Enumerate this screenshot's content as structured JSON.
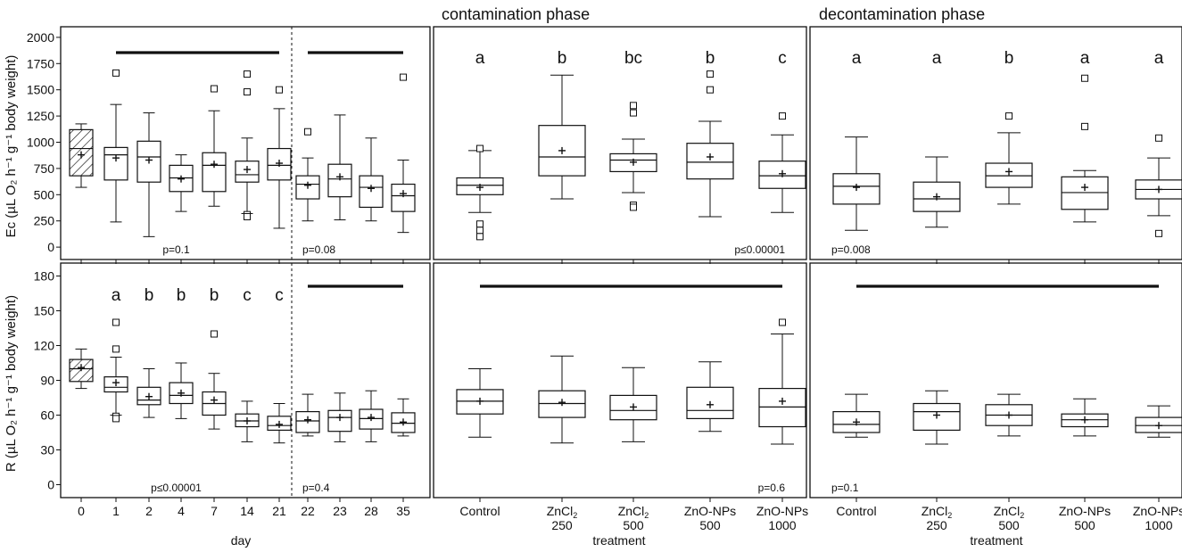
{
  "phase_titles": [
    "contamination phase",
    "decontamination phase"
  ],
  "chart_data": [
    {
      "type": "box",
      "panel": "top-left",
      "ylabel": "Ec (µL O₂ h⁻¹ g⁻¹ body weight)",
      "ylim": [
        0,
        2000
      ],
      "yticks": [
        0,
        250,
        500,
        750,
        1000,
        1250,
        1500,
        1750,
        2000
      ],
      "categories": [
        "0",
        "1",
        "2",
        "4",
        "7",
        "14",
        "21",
        "22",
        "23",
        "28",
        "35"
      ],
      "xlabel": "",
      "p_values": [
        {
          "label": "p=0.1",
          "position": "bottom-left"
        },
        {
          "label": "p=0.08",
          "position": "bottom-right"
        }
      ],
      "significance_bars": [
        [
          1,
          6
        ],
        [
          7,
          10
        ]
      ],
      "letters": [],
      "boxes": [
        {
          "cat": "0",
          "q1": 680,
          "median": 940,
          "q3": 1120,
          "wlo": 570,
          "whi": 1175,
          "mean": 880,
          "outliers": [],
          "hatched": true
        },
        {
          "cat": "1",
          "q1": 640,
          "median": 880,
          "q3": 950,
          "wlo": 240,
          "whi": 1360,
          "mean": 850,
          "outliers": [
            1660
          ]
        },
        {
          "cat": "2",
          "q1": 620,
          "median": 860,
          "q3": 1010,
          "wlo": 100,
          "whi": 1280,
          "mean": 830,
          "outliers": []
        },
        {
          "cat": "4",
          "q1": 530,
          "median": 660,
          "q3": 780,
          "wlo": 340,
          "whi": 880,
          "mean": 650,
          "outliers": []
        },
        {
          "cat": "7",
          "q1": 530,
          "median": 780,
          "q3": 900,
          "wlo": 390,
          "whi": 1300,
          "mean": 790,
          "outliers": [
            1510
          ]
        },
        {
          "cat": "14",
          "q1": 620,
          "median": 690,
          "q3": 820,
          "wlo": 320,
          "whi": 1040,
          "mean": 740,
          "outliers": [
            1650,
            1480,
            310,
            290
          ]
        },
        {
          "cat": "21",
          "q1": 640,
          "median": 780,
          "q3": 940,
          "wlo": 180,
          "whi": 1320,
          "mean": 800,
          "outliers": [
            1500
          ]
        },
        {
          "cat": "22",
          "q1": 460,
          "median": 600,
          "q3": 680,
          "wlo": 250,
          "whi": 850,
          "mean": 590,
          "outliers": [
            1100
          ]
        },
        {
          "cat": "23",
          "q1": 480,
          "median": 650,
          "q3": 790,
          "wlo": 260,
          "whi": 1260,
          "mean": 670,
          "outliers": []
        },
        {
          "cat": "28",
          "q1": 380,
          "median": 570,
          "q3": 680,
          "wlo": 250,
          "whi": 1040,
          "mean": 560,
          "outliers": []
        },
        {
          "cat": "35",
          "q1": 340,
          "median": 490,
          "q3": 600,
          "wlo": 140,
          "whi": 830,
          "mean": 510,
          "outliers": [
            1620
          ]
        }
      ]
    },
    {
      "type": "box",
      "panel": "top-middle",
      "title": "contamination phase",
      "ylim": [
        0,
        2000
      ],
      "categories": [
        [
          "Control"
        ],
        [
          "ZnCl",
          "2",
          "250"
        ],
        [
          "ZnCl",
          "2",
          "500"
        ],
        [
          "ZnO-NPs",
          "",
          "500"
        ],
        [
          "ZnO-NPs",
          "",
          "1000"
        ]
      ],
      "letters": [
        "a",
        "b",
        "bc",
        "b",
        "c"
      ],
      "p_values": [
        {
          "label": "p≤0.00001",
          "position": "bottom-right"
        }
      ],
      "significance_bars": [],
      "boxes": [
        {
          "q1": 500,
          "median": 590,
          "q3": 660,
          "wlo": 330,
          "whi": 920,
          "mean": 570,
          "outliers": [
            940,
            220,
            160,
            100
          ]
        },
        {
          "q1": 680,
          "median": 860,
          "q3": 1160,
          "wlo": 460,
          "whi": 1640,
          "mean": 920,
          "outliers": []
        },
        {
          "q1": 720,
          "median": 830,
          "q3": 890,
          "wlo": 520,
          "whi": 1030,
          "mean": 810,
          "outliers": [
            1350,
            1280,
            400,
            380
          ]
        },
        {
          "q1": 650,
          "median": 810,
          "q3": 990,
          "wlo": 290,
          "whi": 1200,
          "mean": 860,
          "outliers": [
            1650,
            1500
          ]
        },
        {
          "q1": 560,
          "median": 680,
          "q3": 820,
          "wlo": 330,
          "whi": 1070,
          "mean": 700,
          "outliers": [
            1250
          ]
        }
      ]
    },
    {
      "type": "box",
      "panel": "top-right",
      "title": "decontamination phase",
      "ylim": [
        0,
        2000
      ],
      "categories": [
        [
          "Control"
        ],
        [
          "ZnCl",
          "2",
          "250"
        ],
        [
          "ZnCl",
          "2",
          "500"
        ],
        [
          "ZnO-NPs",
          "",
          "500"
        ],
        [
          "ZnO-NPs",
          "",
          "1000"
        ]
      ],
      "letters": [
        "a",
        "a",
        "b",
        "a",
        "a"
      ],
      "p_values": [
        {
          "label": "p=0.008",
          "position": "bottom-left"
        }
      ],
      "significance_bars": [],
      "boxes": [
        {
          "q1": 410,
          "median": 580,
          "q3": 700,
          "wlo": 160,
          "whi": 1050,
          "mean": 570,
          "outliers": []
        },
        {
          "q1": 340,
          "median": 460,
          "q3": 620,
          "wlo": 190,
          "whi": 860,
          "mean": 480,
          "outliers": []
        },
        {
          "q1": 570,
          "median": 680,
          "q3": 800,
          "wlo": 410,
          "whi": 1090,
          "mean": 720,
          "outliers": [
            1250
          ]
        },
        {
          "q1": 360,
          "median": 520,
          "q3": 670,
          "wlo": 240,
          "whi": 730,
          "mean": 570,
          "outliers": [
            1610,
            1150
          ]
        },
        {
          "q1": 460,
          "median": 550,
          "q3": 640,
          "wlo": 300,
          "whi": 850,
          "mean": 550,
          "outliers": [
            1040,
            130
          ]
        }
      ]
    },
    {
      "type": "box",
      "panel": "bottom-left",
      "ylabel": "R (µL O₂ h⁻¹ g⁻¹ body weight)",
      "ylim": [
        0,
        180
      ],
      "yticks": [
        0,
        30,
        60,
        90,
        120,
        150,
        180
      ],
      "categories": [
        "0",
        "1",
        "2",
        "4",
        "7",
        "14",
        "21",
        "22",
        "23",
        "28",
        "35"
      ],
      "xlabel": "day",
      "letters": [
        "",
        "a",
        "b",
        "b",
        "b",
        "c",
        "c",
        "",
        "",
        "",
        ""
      ],
      "p_values": [
        {
          "label": "p≤0.00001",
          "position": "bottom-left"
        },
        {
          "label": "p=0.4",
          "position": "bottom-right"
        }
      ],
      "significance_bars": [
        [
          7,
          10
        ]
      ],
      "boxes": [
        {
          "cat": "0",
          "q1": 89,
          "median": 100,
          "q3": 108,
          "wlo": 83,
          "whi": 117,
          "mean": 101,
          "outliers": [],
          "hatched": true
        },
        {
          "cat": "1",
          "q1": 80,
          "median": 84,
          "q3": 93,
          "wlo": 60,
          "whi": 110,
          "mean": 88,
          "outliers": [
            140,
            117,
            59,
            57
          ]
        },
        {
          "cat": "2",
          "q1": 69,
          "median": 73,
          "q3": 84,
          "wlo": 58,
          "whi": 100,
          "mean": 76,
          "outliers": []
        },
        {
          "cat": "4",
          "q1": 70,
          "median": 77,
          "q3": 88,
          "wlo": 57,
          "whi": 105,
          "mean": 79,
          "outliers": []
        },
        {
          "cat": "7",
          "q1": 60,
          "median": 70,
          "q3": 80,
          "wlo": 48,
          "whi": 96,
          "mean": 73,
          "outliers": [
            130
          ]
        },
        {
          "cat": "14",
          "q1": 50,
          "median": 55,
          "q3": 61,
          "wlo": 37,
          "whi": 72,
          "mean": 55,
          "outliers": []
        },
        {
          "cat": "21",
          "q1": 47,
          "median": 51,
          "q3": 59,
          "wlo": 36,
          "whi": 70,
          "mean": 52,
          "outliers": []
        },
        {
          "cat": "22",
          "q1": 45,
          "median": 55,
          "q3": 63,
          "wlo": 42,
          "whi": 78,
          "mean": 56,
          "outliers": []
        },
        {
          "cat": "23",
          "q1": 46,
          "median": 58,
          "q3": 64,
          "wlo": 37,
          "whi": 79,
          "mean": 58,
          "outliers": []
        },
        {
          "cat": "28",
          "q1": 48,
          "median": 57,
          "q3": 65,
          "wlo": 37,
          "whi": 81,
          "mean": 58,
          "outliers": []
        },
        {
          "cat": "35",
          "q1": 45,
          "median": 53,
          "q3": 62,
          "wlo": 42,
          "whi": 74,
          "mean": 54,
          "outliers": []
        }
      ]
    },
    {
      "type": "box",
      "panel": "bottom-middle",
      "ylim": [
        0,
        180
      ],
      "categories": [
        [
          "Control"
        ],
        [
          "ZnCl",
          "2",
          "250"
        ],
        [
          "ZnCl",
          "2",
          "500"
        ],
        [
          "ZnO-NPs",
          "",
          "500"
        ],
        [
          "ZnO-NPs",
          "",
          "1000"
        ]
      ],
      "xlabel": "treatment",
      "letters": [],
      "p_values": [
        {
          "label": "p=0.6",
          "position": "bottom-right"
        }
      ],
      "significance_bars": [
        [
          0,
          4
        ]
      ],
      "boxes": [
        {
          "q1": 61,
          "median": 72,
          "q3": 82,
          "wlo": 41,
          "whi": 100,
          "mean": 72,
          "outliers": []
        },
        {
          "q1": 58,
          "median": 70,
          "q3": 81,
          "wlo": 36,
          "whi": 111,
          "mean": 71,
          "outliers": []
        },
        {
          "q1": 56,
          "median": 64,
          "q3": 77,
          "wlo": 37,
          "whi": 101,
          "mean": 67,
          "outliers": []
        },
        {
          "q1": 57,
          "median": 64,
          "q3": 84,
          "wlo": 46,
          "whi": 106,
          "mean": 69,
          "outliers": []
        },
        {
          "q1": 50,
          "median": 67,
          "q3": 83,
          "wlo": 35,
          "whi": 130,
          "mean": 72,
          "outliers": [
            140
          ]
        }
      ]
    },
    {
      "type": "box",
      "panel": "bottom-right",
      "ylim": [
        0,
        180
      ],
      "categories": [
        [
          "Control"
        ],
        [
          "ZnCl",
          "2",
          "250"
        ],
        [
          "ZnCl",
          "2",
          "500"
        ],
        [
          "ZnO-NPs",
          "",
          "500"
        ],
        [
          "ZnO-NPs",
          "",
          "1000"
        ]
      ],
      "xlabel": "treatment",
      "letters": [],
      "p_values": [
        {
          "label": "p=0.1",
          "position": "bottom-left"
        }
      ],
      "significance_bars": [
        [
          0,
          4
        ]
      ],
      "boxes": [
        {
          "q1": 45,
          "median": 52,
          "q3": 63,
          "wlo": 41,
          "whi": 78,
          "mean": 54,
          "outliers": []
        },
        {
          "q1": 47,
          "median": 63,
          "q3": 70,
          "wlo": 35,
          "whi": 81,
          "mean": 60,
          "outliers": []
        },
        {
          "q1": 51,
          "median": 60,
          "q3": 69,
          "wlo": 42,
          "whi": 78,
          "mean": 60,
          "outliers": []
        },
        {
          "q1": 50,
          "median": 56,
          "q3": 61,
          "wlo": 42,
          "whi": 74,
          "mean": 56,
          "outliers": []
        },
        {
          "q1": 45,
          "median": 51,
          "q3": 58,
          "wlo": 41,
          "whi": 68,
          "mean": 51,
          "outliers": []
        }
      ]
    }
  ]
}
